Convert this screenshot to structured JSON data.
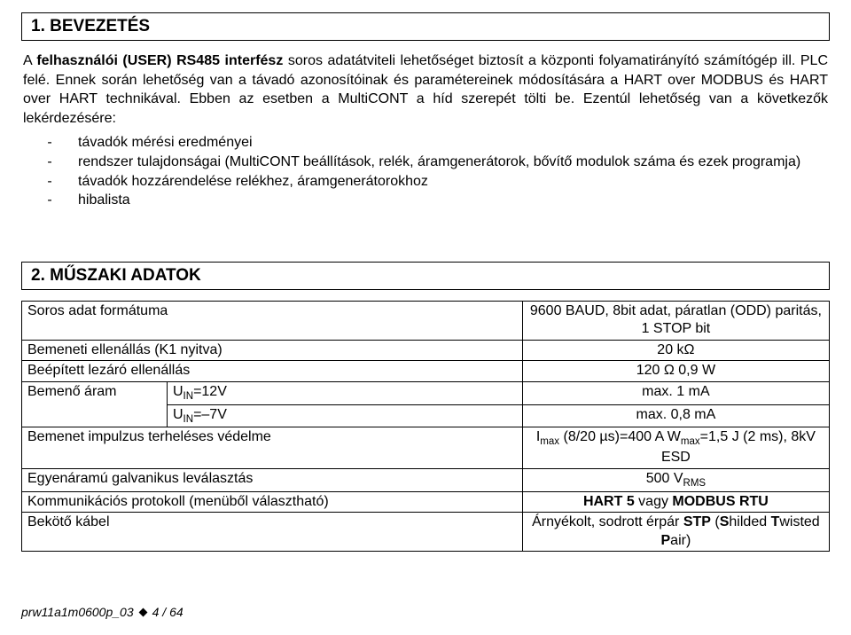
{
  "section1": {
    "heading": "1. BEVEZETÉS",
    "para_parts": {
      "p0": "A ",
      "p1": "felhasználói (USER) RS485 interfész",
      "p2": " soros adatátviteli lehetőséget biztosít a központi folyamatirányító számítógép ill. PLC felé. Ennek során lehetőség van a távadó azonosítóinak és paramétereinek módosítására a HART over MODBUS és HART over HART technikával. Ebben az esetben a MultiCONT a híd szerepét tölti be. Ezentúl lehetőség van a következők lekérdezésére:"
    },
    "list": [
      "távadók mérési eredményei",
      "rendszer tulajdonságai (MultiCONT beállítások, relék, áramgenerátorok, bővítő modulok száma és ezek programja)",
      "távadók hozzárendelése relékhez, áramgenerátorokhoz",
      "hibalista"
    ]
  },
  "section2": {
    "heading": "2. MŰSZAKI ADATOK",
    "rows": [
      {
        "label": "Soros adat formátuma",
        "value": "9600 BAUD, 8bit adat, páratlan (ODD) paritás, 1 STOP bit"
      },
      {
        "label": "Bemeneti ellenállás (K1 nyitva)",
        "value": "20 kΩ"
      },
      {
        "label": "Beépített lezáró ellenállás",
        "value": "120 Ω  0,9 W"
      }
    ],
    "row_bemenoaram": {
      "label_main": "Bemenő áram",
      "uin12_lbl_html": "U<span class='sub'>IN</span>=12V",
      "uin12_val": "max. 1 mA",
      "uinm7_lbl_html": "U<span class='sub'>IN</span>=–7V",
      "uinm7_val": "max. 0,8 mA"
    },
    "rows2": [
      {
        "label": "Bemenet impulzus terheléses védelme",
        "value_html": "I<span class='sub'>max</span> (8/20 µs)=400 A  W<span class='sub'>max</span>=1,5 J (2 ms), 8kV ESD"
      },
      {
        "label": "Egyenáramú galvanikus leválasztás",
        "value_html": "500 V<span class='sub'>RMS</span>"
      },
      {
        "label": "Kommunikációs protokoll (menüből választható)",
        "value_html": "<b>HART 5</b> vagy <b>MODBUS RTU</b>"
      },
      {
        "label": "Bekötő kábel",
        "value_html": "Árnyékolt, sodrott érpár <b>STP</b> (<b>S</b>hilded <b>T</b>wisted <b>P</b>air)"
      }
    ]
  },
  "footer": {
    "doc": "prw11a1m0600p_03",
    "page": "4 / 64"
  }
}
